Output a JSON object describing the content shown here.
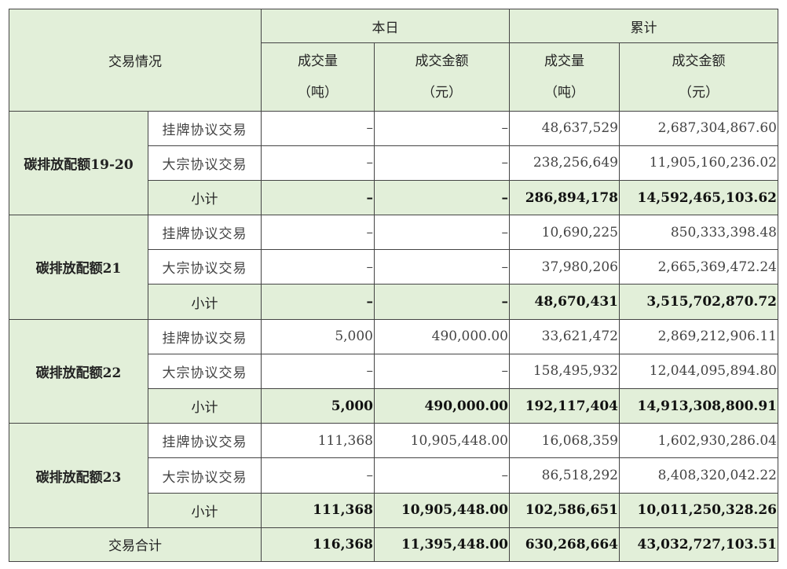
{
  "header": {
    "trade_situation": "交易情况",
    "today": "本日",
    "cumulative": "累计",
    "volume_label": "成交量",
    "volume_unit": "（吨）",
    "amount_label": "成交金额",
    "amount_unit": "（元）"
  },
  "groups": [
    {
      "name": "碳排放配额19-20",
      "rows": [
        {
          "type": "挂牌协议交易",
          "today_vol": "–",
          "today_amt": "–",
          "cum_vol": "48,637,529",
          "cum_amt": "2,687,304,867.60"
        },
        {
          "type": "大宗协议交易",
          "today_vol": "–",
          "today_amt": "–",
          "cum_vol": "238,256,649",
          "cum_amt": "11,905,160,236.02"
        },
        {
          "type": "小计",
          "today_vol": "–",
          "today_amt": "–",
          "cum_vol": "286,894,178",
          "cum_amt": "14,592,465,103.62"
        }
      ]
    },
    {
      "name": "碳排放配额21",
      "rows": [
        {
          "type": "挂牌协议交易",
          "today_vol": "–",
          "today_amt": "–",
          "cum_vol": "10,690,225",
          "cum_amt": "850,333,398.48"
        },
        {
          "type": "大宗协议交易",
          "today_vol": "–",
          "today_amt": "–",
          "cum_vol": "37,980,206",
          "cum_amt": "2,665,369,472.24"
        },
        {
          "type": "小计",
          "today_vol": "–",
          "today_amt": "–",
          "cum_vol": "48,670,431",
          "cum_amt": "3,515,702,870.72"
        }
      ]
    },
    {
      "name": "碳排放配额22",
      "rows": [
        {
          "type": "挂牌协议交易",
          "today_vol": "5,000",
          "today_amt": "490,000.00",
          "cum_vol": "33,621,472",
          "cum_amt": "2,869,212,906.11"
        },
        {
          "type": "大宗协议交易",
          "today_vol": "–",
          "today_amt": "–",
          "cum_vol": "158,495,932",
          "cum_amt": "12,044,095,894.80"
        },
        {
          "type": "小计",
          "today_vol": "5,000",
          "today_amt": "490,000.00",
          "cum_vol": "192,117,404",
          "cum_amt": "14,913,308,800.91"
        }
      ]
    },
    {
      "name": "碳排放配额23",
      "rows": [
        {
          "type": "挂牌协议交易",
          "today_vol": "111,368",
          "today_amt": "10,905,448.00",
          "cum_vol": "16,068,359",
          "cum_amt": "1,602,930,286.04"
        },
        {
          "type": "大宗协议交易",
          "today_vol": "–",
          "today_amt": "–",
          "cum_vol": "86,518,292",
          "cum_amt": "8,408,320,042.22"
        },
        {
          "type": "小计",
          "today_vol": "111,368",
          "today_amt": "10,905,448.00",
          "cum_vol": "102,586,651",
          "cum_amt": "10,011,250,328.26"
        }
      ]
    }
  ],
  "total": {
    "label": "交易合计",
    "today_vol": "116,368",
    "today_amt": "11,395,448.00",
    "cum_vol": "630,268,664",
    "cum_amt": "43,032,727,103.51"
  }
}
